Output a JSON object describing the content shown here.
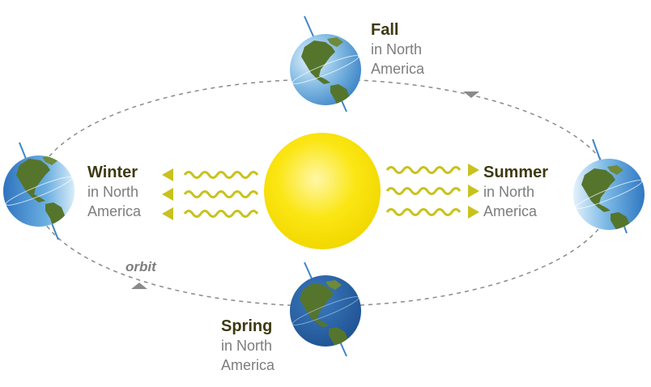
{
  "seasons": {
    "fall": {
      "name": "Fall",
      "line1": "in North",
      "line2": "America"
    },
    "winter": {
      "name": "Winter",
      "line1": "in North",
      "line2": "America"
    },
    "summer": {
      "name": "Summer",
      "line1": "in North",
      "line2": "America"
    },
    "spring": {
      "name": "Spring",
      "line1": "in North",
      "line2": "America"
    }
  },
  "orbit_label": "orbit",
  "icons": [
    "sun-icon",
    "earth-globe-icon",
    "sunlight-wave-arrow-icon",
    "orbit-direction-arrow-icon"
  ],
  "colors": {
    "sun": "#fbe614",
    "sun_glow": "#fff6a0",
    "rays": "#c8c21e",
    "ocean": "#3f86c7",
    "land": "#55752c",
    "orbit": "#8a8a8a",
    "season_name": "#3e3a12",
    "season_sub": "#7d7d7d"
  }
}
